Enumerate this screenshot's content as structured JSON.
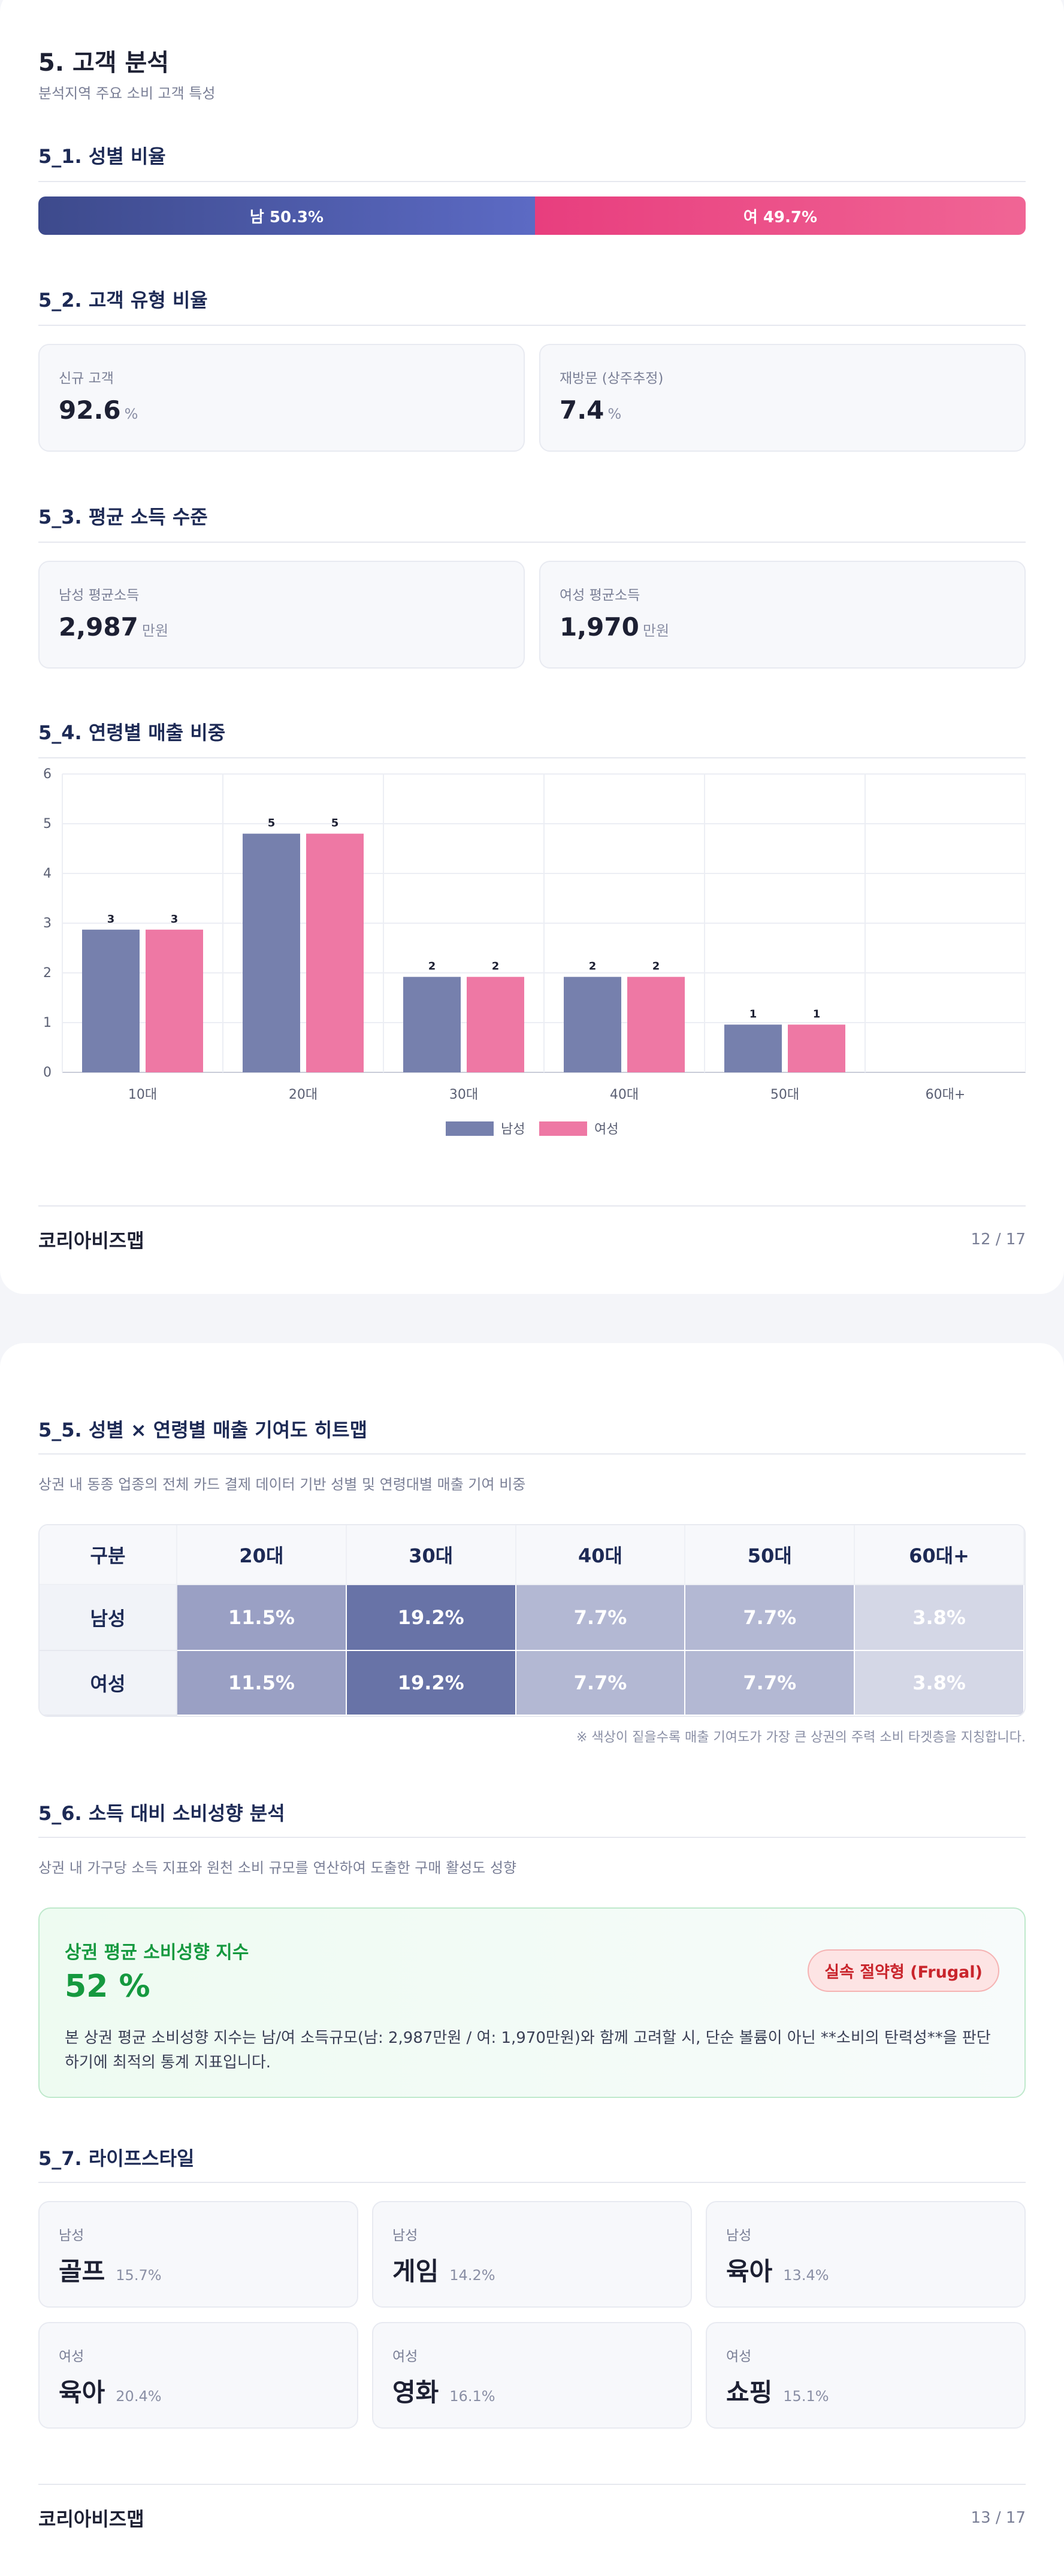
{
  "page1": {
    "title": "5. 고객 분석",
    "subtitle": "분석지역 주요 소비 고객 특성",
    "gender": {
      "title": "5_1. 성별 비율",
      "male_label": "남 50.3%",
      "female_label": "여 49.7%",
      "male_pct": 50.3,
      "female_pct": 49.7
    },
    "customer_type": {
      "title": "5_2. 고객 유형 비율",
      "cards": [
        {
          "label": "신규 고객",
          "value": "92.6",
          "unit": "%"
        },
        {
          "label": "재방문 (상주추정)",
          "value": "7.4",
          "unit": "%"
        }
      ]
    },
    "income": {
      "title": "5_3. 평균 소득 수준",
      "cards": [
        {
          "label": "남성 평균소득",
          "value": "2,987",
          "unit": "만원"
        },
        {
          "label": "여성 평균소득",
          "value": "1,970",
          "unit": "만원"
        }
      ]
    },
    "age_sales": {
      "title": "5_4. 연령별 매출 비중"
    },
    "footer": {
      "brand": "코리아비즈맵",
      "page": "12 / 17"
    }
  },
  "chart_data": {
    "type": "bar",
    "categories": [
      "10대",
      "20대",
      "30대",
      "40대",
      "50대",
      "60대+"
    ],
    "series": [
      {
        "name": "남성",
        "values": [
          2.87,
          4.8,
          1.92,
          1.92,
          0.96,
          0
        ],
        "labels": [
          "3",
          "5",
          "2",
          "2",
          "1",
          ""
        ],
        "color": "#7680ad"
      },
      {
        "name": "여성",
        "values": [
          2.87,
          4.8,
          1.92,
          1.92,
          0.96,
          0
        ],
        "labels": [
          "3",
          "5",
          "2",
          "2",
          "1",
          ""
        ],
        "color": "#ee78a4"
      }
    ],
    "ylim": [
      0,
      6
    ],
    "yticks": [
      "0",
      "1",
      "2",
      "3",
      "4",
      "5",
      "6"
    ],
    "grid": true,
    "legend": "bottom"
  },
  "page2": {
    "heatmap": {
      "title": "5_5. 성별 × 연령별 매출 기여도 히트맵",
      "desc": "상권 내 동종 업종의 전체 카드 결제 데이터 기반 성별 및 연령대별 매출 기여 비중",
      "headers": [
        "구분",
        "20대",
        "30대",
        "40대",
        "50대",
        "60대+"
      ],
      "rows": [
        {
          "label": "남성",
          "cells": [
            "11.5%",
            "19.2%",
            "7.7%",
            "7.7%",
            "3.8%"
          ],
          "colors": [
            "#9aa0c4",
            "#6873a7",
            "#b3b8d3",
            "#b3b8d3",
            "#d4d7e6"
          ]
        },
        {
          "label": "여성",
          "cells": [
            "11.5%",
            "19.2%",
            "7.7%",
            "7.7%",
            "3.8%"
          ],
          "colors": [
            "#9aa0c4",
            "#6873a7",
            "#b3b8d3",
            "#b3b8d3",
            "#d4d7e6"
          ]
        }
      ],
      "note": "※ 색상이 짙을수록 매출 기여도가 가장 큰 상권의 주력 소비 타겟층을 지칭합니다."
    },
    "spending": {
      "title": "5_6. 소득 대비 소비성향 분석",
      "desc": "상권 내 가구당 소득 지표와 원천 소비 규모를 연산하여 도출한 구매 활성도 성향",
      "label": "상권 평균 소비성향 지수",
      "value": "52 %",
      "badge": "실속 절약형 (Frugal)",
      "text": "본 상권 평균 소비성향 지수는 남/여 소득규모(남: 2,987만원 / 여: 1,970만원)와 함께 고려할 시, 단순 볼륨이 아닌 **소비의 탄력성**을 판단하기에 최적의 통계 지표입니다."
    },
    "lifestyle": {
      "title": "5_7. 라이프스타일",
      "items": [
        {
          "gender": "남성",
          "name": "골프",
          "pct": "15.7%"
        },
        {
          "gender": "남성",
          "name": "게임",
          "pct": "14.2%"
        },
        {
          "gender": "남성",
          "name": "육아",
          "pct": "13.4%"
        },
        {
          "gender": "여성",
          "name": "육아",
          "pct": "20.4%"
        },
        {
          "gender": "여성",
          "name": "영화",
          "pct": "16.1%"
        },
        {
          "gender": "여성",
          "name": "쇼핑",
          "pct": "15.1%"
        }
      ]
    },
    "footer": {
      "brand": "코리아비즈맵",
      "page": "13 / 17"
    }
  }
}
